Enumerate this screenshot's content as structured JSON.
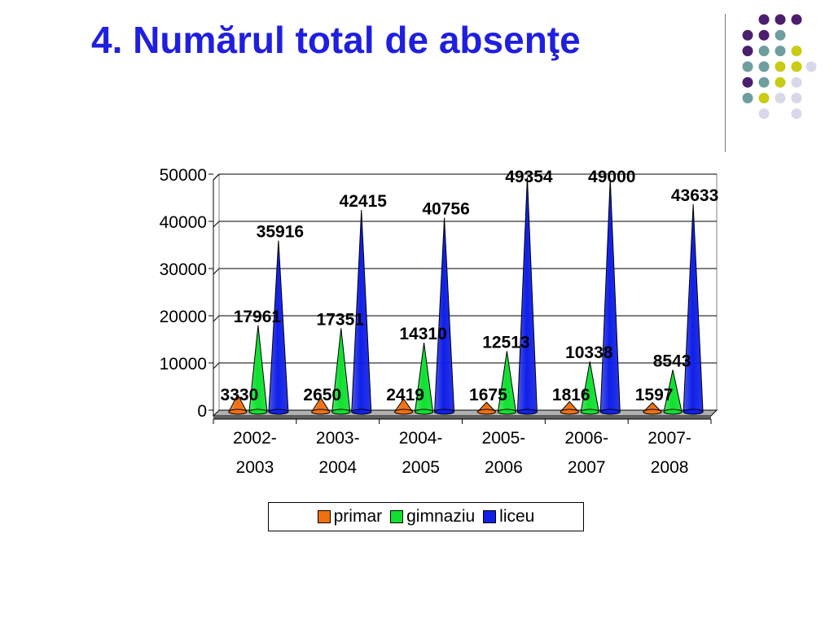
{
  "slide": {
    "title": "4. Numărul total de absenţe"
  },
  "decoration": {
    "dot_colors": {
      "purple": "#4b1e6e",
      "teal": "#6e9e9e",
      "yellow": "#c8cc14",
      "lavender": "#d8d8ea"
    },
    "divider_color": "#7a7a7a"
  },
  "chart_data": {
    "type": "bar",
    "style": "3d-cone",
    "categories": [
      "2002-2003",
      "2003-2004",
      "2004-2005",
      "2005-2006",
      "2006-2007",
      "2007-2008"
    ],
    "category_lines": [
      [
        "2002-",
        "2003"
      ],
      [
        "2003-",
        "2004"
      ],
      [
        "2004-",
        "2005"
      ],
      [
        "2005-",
        "2006"
      ],
      [
        "2006-",
        "2007"
      ],
      [
        "2007-",
        "2008"
      ]
    ],
    "series": [
      {
        "name": "primar",
        "color": "#f07010",
        "values": [
          3330,
          2650,
          2419,
          1675,
          1816,
          1597
        ]
      },
      {
        "name": "gimnaziu",
        "color": "#10e030",
        "values": [
          17961,
          17351,
          14310,
          12513,
          10338,
          8543
        ]
      },
      {
        "name": "liceu",
        "color": "#1020e8",
        "values": [
          35916,
          42415,
          40756,
          49354,
          49000,
          43633
        ]
      }
    ],
    "yticks": [
      "0",
      "10000",
      "20000",
      "30000",
      "40000",
      "50000"
    ],
    "ylim": [
      0,
      50000
    ],
    "grid": true,
    "legend_position": "bottom",
    "data_labels": true
  }
}
